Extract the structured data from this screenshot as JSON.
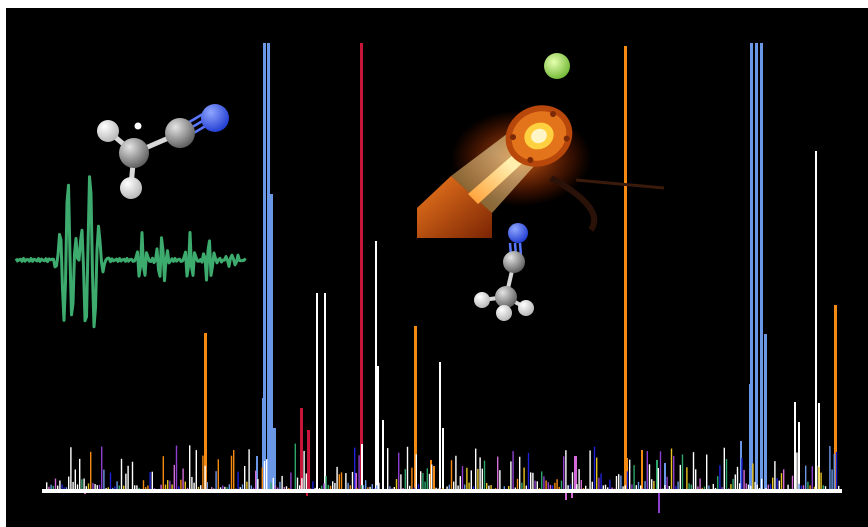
{
  "colors": {
    "background": "#000000",
    "baseline": "#ffffff",
    "blue": "#6a97e6",
    "red": "#c8153a",
    "orange": "#f58a12",
    "white": "#ffffff",
    "magenta": "#d26bd8",
    "green_trace": "#3dab6e",
    "purple": "#8f3fd0",
    "navy": "#1e22d8",
    "gold": "#e8c421",
    "teal": "#2ea56a",
    "lime_sphere": "#a6e05a",
    "nitrogen": "#3a58ea",
    "carbon": "#9a9a9a",
    "hydrogen": "#f2f2f2",
    "laser": "#ffb54a",
    "laser_housing": "#d2560c"
  },
  "icons": {
    "top_left_molecule": "cyanomethyl-radical-molecule-icon",
    "bottom_molecule": "acetonitrile-molecule-icon",
    "laser_source": "laser-source-icon",
    "atom_sphere": "green-sphere-icon",
    "trace": "green-spectral-trace-icon",
    "spectrum": "spectrum-lines-icon"
  }
}
